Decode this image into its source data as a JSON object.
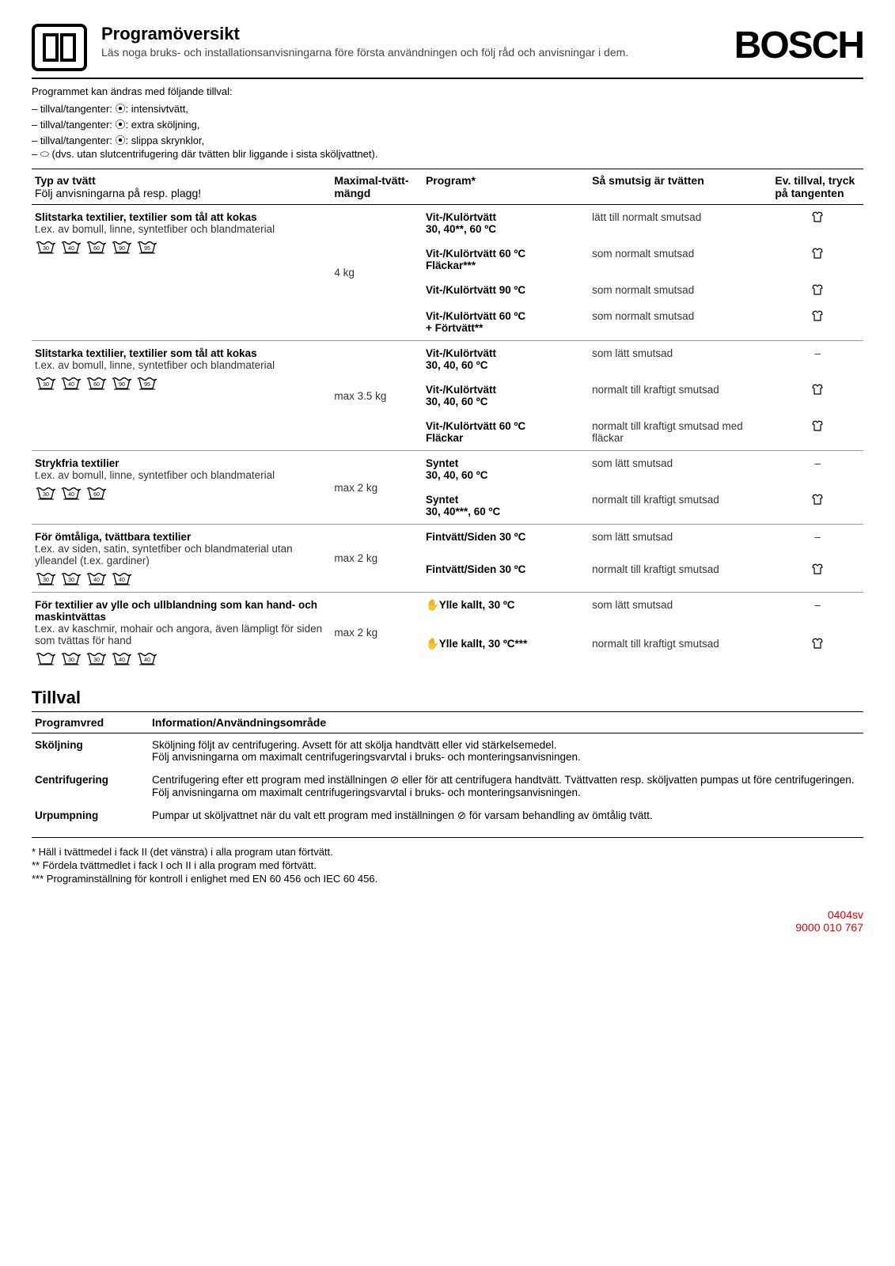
{
  "header": {
    "title": "Programöversikt",
    "subtitle": "Läs noga bruks- och installationsanvisningarna före första användningen och följ råd och anvisningar i dem.",
    "brand": "BOSCH"
  },
  "intro": "Programmet kan ändras med följande tillval:",
  "options": [
    "– tillval/tangenter: ⦿: intensivtvätt,",
    "– tillval/tangenter: ⦿: extra sköljning,",
    "– tillval/tangenter: ⦿: slippa skrynklor,",
    "– ⬭ (dvs. utan slutcentrifugering där tvätten blir liggande i sista sköljvattnet)."
  ],
  "table_headers": {
    "type": "Typ av tvätt",
    "type_sub": "Följ anvisningarna på resp. plagg!",
    "max": "Maximal-tvätt-mängd",
    "program": "Program*",
    "soil": "Så smutsig är tvätten",
    "extra": "Ev. tillval, tryck på tangenten"
  },
  "groups": [
    {
      "type_title": "Slitstarka textilier, textilier som tål att kokas",
      "type_desc": "t.ex. av bomull, linne, syntetfiber och blandmaterial",
      "care_temps": [
        "30",
        "40",
        "60",
        "90",
        "95"
      ],
      "max": "4 kg",
      "rows": [
        {
          "program": "Vit-/Kulörtvätt\n30, 40**, 60 ºC",
          "soil": "lätt till normalt smutsad",
          "extra_icon": true
        },
        {
          "program": "Vit-/Kulörtvätt 60 ºC\nFläckar***",
          "soil": "som normalt smutsad",
          "extra_icon": true
        },
        {
          "program": "Vit-/Kulörtvätt 90 ºC",
          "soil": "som normalt smutsad",
          "extra_icon": true
        },
        {
          "program": "Vit-/Kulörtvätt 60 ºC\n+ Förtvätt**",
          "soil": "som normalt smutsad",
          "extra_icon": true
        }
      ]
    },
    {
      "type_title": "Slitstarka textilier, textilier som tål att kokas",
      "type_desc": "t.ex. av bomull, linne, syntetfiber och blandmaterial",
      "care_temps": [
        "30",
        "40",
        "60",
        "90",
        "95"
      ],
      "max": "max 3.5 kg",
      "rows": [
        {
          "program": "Vit-/Kulörtvätt\n30, 40, 60 ºC",
          "soil": "som lätt smutsad",
          "extra_icon": false
        },
        {
          "program": "Vit-/Kulörtvätt\n30, 40, 60 ºC",
          "soil": "normalt till kraftigt smutsad",
          "extra_icon": true
        },
        {
          "program": "Vit-/Kulörtvätt 60 ºC\nFläckar",
          "soil": "normalt till kraftigt smutsad med fläckar",
          "extra_icon": true
        }
      ]
    },
    {
      "type_title": "Strykfria textilier",
      "type_desc": "t.ex. av bomull, linne, syntetfiber och blandmaterial",
      "care_temps": [
        "30",
        "40",
        "60"
      ],
      "max": "max 2 kg",
      "rows": [
        {
          "program": "Syntet\n30, 40, 60 ºC",
          "soil": "som lätt smutsad",
          "extra_icon": false
        },
        {
          "program": "Syntet\n30, 40***, 60 ºC",
          "soil": "normalt till kraftigt smutsad",
          "extra_icon": true
        }
      ]
    },
    {
      "type_title": "För ömtåliga, tvättbara textilier",
      "type_desc": "t.ex. av siden, satin, syntetfiber och blandmaterial utan ylleandel (t.ex. gardiner)",
      "care_temps": [
        "30",
        "30",
        "40",
        "40"
      ],
      "max": "max 2 kg",
      "rows": [
        {
          "program": "Fintvätt/Siden 30 ºC",
          "soil": "som lätt smutsad",
          "extra_icon": false
        },
        {
          "program": "Fintvätt/Siden 30 ºC",
          "soil": "normalt till kraftigt smutsad",
          "extra_icon": true
        }
      ]
    },
    {
      "type_title": "För textilier av ylle och ullblandning som kan hand- och maskintvättas",
      "type_desc": "t.ex. av kaschmir, mohair och angora, även lämpligt för siden som tvättas för hand",
      "care_temps": [
        "",
        "30",
        "30",
        "40",
        "40"
      ],
      "max": "max 2 kg",
      "rows": [
        {
          "program": "✋Ylle kallt, 30 ºC",
          "soil": "som lätt smutsad",
          "extra_icon": false
        },
        {
          "program": "✋Ylle kallt, 30 ºC***",
          "soil": "normalt till kraftigt smutsad",
          "extra_icon": true
        }
      ]
    }
  ],
  "tillval": {
    "heading": "Tillval",
    "headers": {
      "col1": "Programvred",
      "col2": "Information/Användningsområde"
    },
    "rows": [
      {
        "label": "Sköljning",
        "text": "Sköljning följt av centrifugering. Avsett för att skölja handtvätt eller vid stärkelsemedel.\nFölj anvisningarna om maximalt centrifugeringsvarvtal i bruks- och monteringsanvisningen."
      },
      {
        "label": "Centrifugering",
        "text": "Centrifugering efter ett program med inställningen ⊘ eller för att centrifugera handtvätt. Tvättvatten resp. sköljvatten pumpas ut före centrifugeringen. Följ anvisningarna om maximalt centrifugeringsvarvtal i bruks- och monteringsanvisningen."
      },
      {
        "label": "Urpumpning",
        "text": "Pumpar ut sköljvattnet när du valt ett program med inställningen ⊘ för varsam behandling av ömtålig tvätt."
      }
    ]
  },
  "footnotes": [
    "*   Häll i tvättmedel i fack II (det vänstra) i alla program utan förtvätt.",
    "**  Fördela tvättmedlet i fack I och II i alla program med förtvätt.",
    "*** Programinställning för kontroll i enlighet med EN 60 456 och IEC 60 456."
  ],
  "footer": {
    "line1": "0404sv",
    "line2": "9000 010 767"
  },
  "colors": {
    "text": "#000000",
    "muted": "#444444",
    "rule": "#000000",
    "red": "#d00000"
  }
}
